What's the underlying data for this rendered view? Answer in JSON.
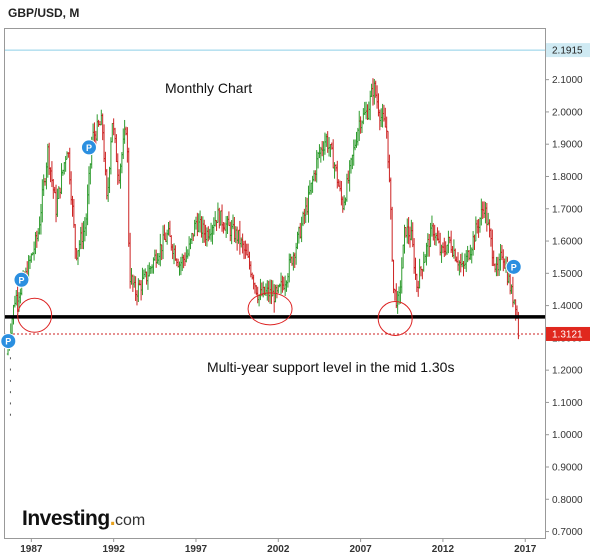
{
  "title": "GBP/USD, M",
  "annotations": {
    "monthly": "Monthly Chart",
    "support": "Multi-year support level  in the mid 1.30s"
  },
  "logo": {
    "main": "Investing",
    "dot": ".",
    "suffix": "com"
  },
  "colors": {
    "up": "#2e9b2e",
    "down": "#cc2222",
    "neutral": "#555555",
    "badge": "#2b8fe0",
    "support_line": "#000000",
    "price_line": "#cc2222",
    "top_line": "#8ecfe6"
  },
  "price_labels": {
    "top": "2.1915",
    "current": "1.3121"
  },
  "chart_data": {
    "type": "ohlc",
    "title": "GBP/USD, M",
    "y_range": [
      0.68,
      2.26
    ],
    "x_range": [
      1985.4,
      2018.2
    ],
    "yticks": [
      "2.1000",
      "2.0000",
      "1.9000",
      "1.8000",
      "1.7000",
      "1.6000",
      "1.5000",
      "1.4000",
      "1.3000",
      "1.2000",
      "1.1000",
      "1.0000",
      "0.9000",
      "0.8000",
      "0.7000"
    ],
    "xticks": [
      "1987",
      "1992",
      "1997",
      "2002",
      "2007",
      "2012",
      "2017"
    ],
    "support_level": 1.365,
    "reference_levels": {
      "top": 2.1915,
      "current": 1.3121
    },
    "price_path": [
      [
        1985.5,
        1.25
      ],
      [
        1986.0,
        1.42
      ],
      [
        1986.6,
        1.48
      ],
      [
        1987.4,
        1.62
      ],
      [
        1988.0,
        1.88
      ],
      [
        1988.5,
        1.7
      ],
      [
        1989.2,
        1.9
      ],
      [
        1989.7,
        1.56
      ],
      [
        1990.3,
        1.65
      ],
      [
        1990.7,
        1.92
      ],
      [
        1991.3,
        1.97
      ],
      [
        1991.6,
        1.71
      ],
      [
        1991.9,
        1.98
      ],
      [
        1992.3,
        1.8
      ],
      [
        1992.8,
        1.97
      ],
      [
        1992.95,
        1.5
      ],
      [
        1993.3,
        1.44
      ],
      [
        1994.0,
        1.49
      ],
      [
        1994.6,
        1.56
      ],
      [
        1995.3,
        1.62
      ],
      [
        1996.0,
        1.53
      ],
      [
        1996.5,
        1.56
      ],
      [
        1997.0,
        1.66
      ],
      [
        1997.6,
        1.62
      ],
      [
        1998.3,
        1.68
      ],
      [
        1999.0,
        1.64
      ],
      [
        1999.6,
        1.61
      ],
      [
        2000.3,
        1.52
      ],
      [
        2000.8,
        1.43
      ],
      [
        2001.3,
        1.44
      ],
      [
        2001.9,
        1.43
      ],
      [
        2002.4,
        1.48
      ],
      [
        2003.1,
        1.59
      ],
      [
        2003.8,
        1.72
      ],
      [
        2004.4,
        1.86
      ],
      [
        2004.9,
        1.92
      ],
      [
        2005.4,
        1.84
      ],
      [
        2005.9,
        1.71
      ],
      [
        2006.3,
        1.8
      ],
      [
        2006.9,
        1.97
      ],
      [
        2007.4,
        2.0
      ],
      [
        2007.8,
        2.08
      ],
      [
        2008.2,
        1.99
      ],
      [
        2008.6,
        1.94
      ],
      [
        2008.8,
        1.72
      ],
      [
        2009.0,
        1.45
      ],
      [
        2009.3,
        1.4
      ],
      [
        2009.7,
        1.64
      ],
      [
        2010.1,
        1.61
      ],
      [
        2010.4,
        1.46
      ],
      [
        2010.9,
        1.56
      ],
      [
        2011.4,
        1.64
      ],
      [
        2011.9,
        1.56
      ],
      [
        2012.4,
        1.6
      ],
      [
        2013.2,
        1.51
      ],
      [
        2013.8,
        1.6
      ],
      [
        2014.5,
        1.71
      ],
      [
        2014.9,
        1.6
      ],
      [
        2015.3,
        1.49
      ],
      [
        2015.6,
        1.57
      ],
      [
        2015.95,
        1.49
      ],
      [
        2016.2,
        1.43
      ],
      [
        2016.4,
        1.42
      ],
      [
        2016.6,
        1.31
      ]
    ],
    "circles": [
      {
        "x": 1987.2,
        "y": 1.37
      },
      {
        "x": 2001.5,
        "y": 1.39
      },
      {
        "x": 2009.1,
        "y": 1.36
      }
    ],
    "badges": [
      {
        "x": 1985.6,
        "y": 1.29,
        "label": "P"
      },
      {
        "x": 1986.4,
        "y": 1.48,
        "label": "P"
      },
      {
        "x": 1990.5,
        "y": 1.89,
        "label": "P"
      },
      {
        "x": 2016.3,
        "y": 1.52,
        "label": "P"
      }
    ]
  }
}
